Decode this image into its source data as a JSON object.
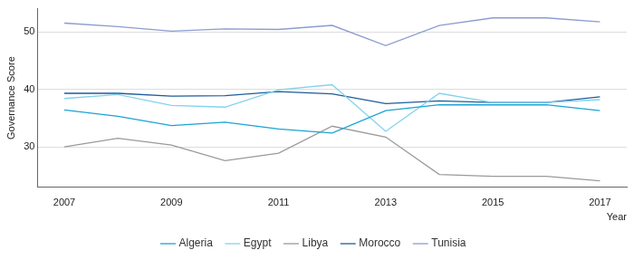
{
  "chart_data": {
    "type": "line",
    "x_label": "Year",
    "y_label": "Governance Score",
    "x": [
      2007,
      2008,
      2009,
      2010,
      2011,
      2012,
      2013,
      2014,
      2015,
      2016,
      2017
    ],
    "series": [
      {
        "name": "Algeria",
        "color": "#1ba3d4",
        "values": [
          36.4,
          35.3,
          33.7,
          34.3,
          33.1,
          32.4,
          36.3,
          37.3,
          37.3,
          37.3,
          36.3
        ]
      },
      {
        "name": "Egypt",
        "color": "#82d2ef",
        "values": [
          38.4,
          39.1,
          37.2,
          36.9,
          39.9,
          40.8,
          32.7,
          39.3,
          37.7,
          37.7,
          38.2
        ]
      },
      {
        "name": "Libya",
        "color": "#9a9a9a",
        "values": [
          30.0,
          31.5,
          30.3,
          27.6,
          28.9,
          33.6,
          31.7,
          25.2,
          24.9,
          24.9,
          24.1
        ]
      },
      {
        "name": "Morocco",
        "color": "#1f5c9a",
        "values": [
          39.3,
          39.3,
          38.8,
          38.9,
          39.6,
          39.2,
          37.5,
          38.0,
          37.7,
          37.7,
          38.7
        ]
      },
      {
        "name": "Tunisia",
        "color": "#8d9ccf",
        "values": [
          51.5,
          50.9,
          50.1,
          50.5,
          50.4,
          51.1,
          47.6,
          51.1,
          52.4,
          52.4,
          51.7
        ]
      }
    ],
    "xlim": [
      2006.5,
      2017.5
    ],
    "xticks": [
      2007,
      2009,
      2011,
      2013,
      2015,
      2017
    ],
    "ylim": [
      23,
      54
    ],
    "yticks": [
      30,
      40,
      50
    ],
    "grid": true,
    "legend": "bottom"
  }
}
